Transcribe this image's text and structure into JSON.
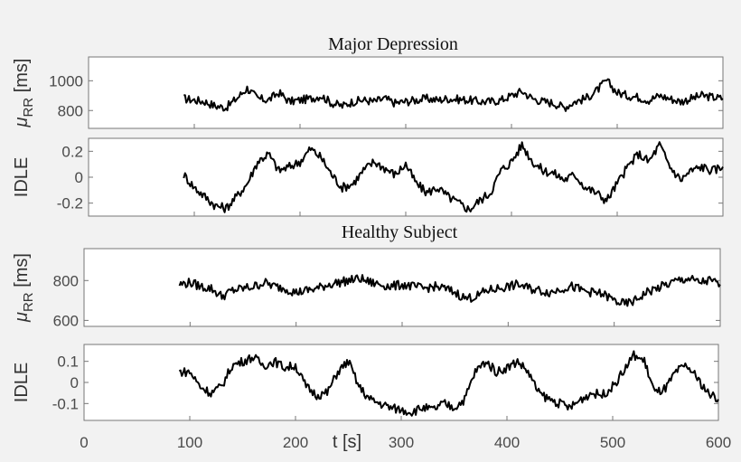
{
  "chart_data": [
    {
      "type": "line",
      "title": "Major Depression",
      "ylabel_main": "μ",
      "ylabel_sub": "RR",
      "ylabel_unit": "[ms]",
      "ylim": [
        680,
        1160
      ],
      "yticks": [
        {
          "v": 800,
          "label": "800"
        },
        {
          "v": 1000,
          "label": "1000"
        }
      ],
      "xlim": [
        0,
        600
      ],
      "series": [
        {
          "values": [
            [
              90,
              880
            ],
            [
              100,
              870
            ],
            [
              110,
              860
            ],
            [
              120,
              830
            ],
            [
              130,
              820
            ],
            [
              140,
              880
            ],
            [
              150,
              950
            ],
            [
              160,
              880
            ],
            [
              170,
              870
            ],
            [
              180,
              920
            ],
            [
              190,
              860
            ],
            [
              200,
              870
            ],
            [
              210,
              880
            ],
            [
              220,
              900
            ],
            [
              230,
              850
            ],
            [
              240,
              830
            ],
            [
              250,
              860
            ],
            [
              260,
              870
            ],
            [
              270,
              860
            ],
            [
              280,
              880
            ],
            [
              290,
              850
            ],
            [
              300,
              860
            ],
            [
              310,
              870
            ],
            [
              320,
              880
            ],
            [
              330,
              870
            ],
            [
              340,
              880
            ],
            [
              350,
              875
            ],
            [
              360,
              870
            ],
            [
              370,
              860
            ],
            [
              380,
              860
            ],
            [
              390,
              870
            ],
            [
              400,
              900
            ],
            [
              410,
              930
            ],
            [
              420,
              880
            ],
            [
              430,
              860
            ],
            [
              440,
              850
            ],
            [
              450,
              820
            ],
            [
              460,
              860
            ],
            [
              470,
              880
            ],
            [
              480,
              930
            ],
            [
              490,
              1000
            ],
            [
              500,
              920
            ],
            [
              510,
              900
            ],
            [
              520,
              890
            ],
            [
              530,
              870
            ],
            [
              540,
              900
            ],
            [
              550,
              880
            ],
            [
              560,
              860
            ],
            [
              570,
              880
            ],
            [
              580,
              900
            ],
            [
              590,
              890
            ],
            [
              600,
              880
            ]
          ]
        }
      ]
    },
    {
      "type": "line",
      "title": "",
      "ylabel": "IDLE",
      "ylim": [
        -0.3,
        0.3
      ],
      "yticks": [
        {
          "v": -0.2,
          "label": "-0.2"
        },
        {
          "v": 0,
          "label": "0"
        },
        {
          "v": 0.2,
          "label": "0.2"
        }
      ],
      "xlim": [
        0,
        600
      ],
      "series": [
        {
          "values": [
            [
              90,
              0.02
            ],
            [
              100,
              -0.08
            ],
            [
              110,
              -0.15
            ],
            [
              120,
              -0.22
            ],
            [
              130,
              -0.24
            ],
            [
              140,
              -0.15
            ],
            [
              150,
              -0.05
            ],
            [
              160,
              0.12
            ],
            [
              170,
              0.18
            ],
            [
              180,
              0.05
            ],
            [
              190,
              0.08
            ],
            [
              200,
              0.12
            ],
            [
              210,
              0.22
            ],
            [
              220,
              0.15
            ],
            [
              230,
              0.02
            ],
            [
              240,
              -0.08
            ],
            [
              250,
              -0.05
            ],
            [
              260,
              0.05
            ],
            [
              270,
              0.12
            ],
            [
              280,
              0.07
            ],
            [
              290,
              0.02
            ],
            [
              300,
              0.1
            ],
            [
              310,
              -0.05
            ],
            [
              320,
              -0.12
            ],
            [
              330,
              -0.08
            ],
            [
              340,
              -0.15
            ],
            [
              350,
              -0.2
            ],
            [
              360,
              -0.25
            ],
            [
              370,
              -0.18
            ],
            [
              380,
              -0.12
            ],
            [
              390,
              0.05
            ],
            [
              400,
              0.12
            ],
            [
              410,
              0.25
            ],
            [
              420,
              0.12
            ],
            [
              430,
              0.05
            ],
            [
              440,
              0.03
            ],
            [
              450,
              -0.02
            ],
            [
              460,
              0.02
            ],
            [
              470,
              -0.08
            ],
            [
              480,
              -0.12
            ],
            [
              490,
              -0.18
            ],
            [
              500,
              -0.05
            ],
            [
              510,
              0.08
            ],
            [
              520,
              0.18
            ],
            [
              530,
              0.12
            ],
            [
              540,
              0.25
            ],
            [
              550,
              0.08
            ],
            [
              560,
              -0.02
            ],
            [
              570,
              0.05
            ],
            [
              580,
              0.08
            ],
            [
              590,
              0.05
            ],
            [
              600,
              0.08
            ]
          ]
        }
      ]
    },
    {
      "type": "line",
      "title": "Healthy Subject",
      "ylabel_main": "μ",
      "ylabel_sub": "RR",
      "ylabel_unit": "[ms]",
      "ylim": [
        570,
        960
      ],
      "yticks": [
        {
          "v": 600,
          "label": "600"
        },
        {
          "v": 800,
          "label": "800"
        }
      ],
      "xlim": [
        0,
        600
      ],
      "series": [
        {
          "values": [
            [
              90,
              780
            ],
            [
              100,
              790
            ],
            [
              110,
              770
            ],
            [
              120,
              760
            ],
            [
              130,
              720
            ],
            [
              140,
              750
            ],
            [
              150,
              760
            ],
            [
              160,
              770
            ],
            [
              170,
              790
            ],
            [
              180,
              770
            ],
            [
              190,
              760
            ],
            [
              200,
              740
            ],
            [
              210,
              750
            ],
            [
              220,
              760
            ],
            [
              230,
              780
            ],
            [
              240,
              790
            ],
            [
              250,
              800
            ],
            [
              260,
              810
            ],
            [
              270,
              790
            ],
            [
              280,
              780
            ],
            [
              290,
              770
            ],
            [
              300,
              780
            ],
            [
              310,
              770
            ],
            [
              320,
              760
            ],
            [
              330,
              770
            ],
            [
              340,
              760
            ],
            [
              350,
              740
            ],
            [
              360,
              710
            ],
            [
              370,
              720
            ],
            [
              380,
              750
            ],
            [
              390,
              760
            ],
            [
              400,
              770
            ],
            [
              410,
              780
            ],
            [
              420,
              760
            ],
            [
              430,
              750
            ],
            [
              440,
              740
            ],
            [
              450,
              760
            ],
            [
              460,
              770
            ],
            [
              470,
              750
            ],
            [
              480,
              740
            ],
            [
              490,
              730
            ],
            [
              500,
              700
            ],
            [
              510,
              680
            ],
            [
              520,
              700
            ],
            [
              530,
              740
            ],
            [
              540,
              760
            ],
            [
              550,
              780
            ],
            [
              560,
              800
            ],
            [
              570,
              810
            ],
            [
              580,
              790
            ],
            [
              590,
              800
            ],
            [
              600,
              780
            ]
          ]
        }
      ]
    },
    {
      "type": "line",
      "title": "",
      "ylabel": "IDLE",
      "ylim": [
        -0.18,
        0.18
      ],
      "yticks": [
        {
          "v": -0.1,
          "label": "-0.1"
        },
        {
          "v": 0,
          "label": "0"
        },
        {
          "v": 0.1,
          "label": "0.1"
        }
      ],
      "xlim": [
        0,
        600
      ],
      "xlabel": "t [s]",
      "xticks": [
        {
          "v": 0,
          "label": "0"
        },
        {
          "v": 100,
          "label": "100"
        },
        {
          "v": 200,
          "label": "200"
        },
        {
          "v": 300,
          "label": "300"
        },
        {
          "v": 400,
          "label": "400"
        },
        {
          "v": 500,
          "label": "500"
        },
        {
          "v": 600,
          "label": "600"
        }
      ],
      "series": [
        {
          "values": [
            [
              90,
              0.05
            ],
            [
              100,
              0.05
            ],
            [
              110,
              -0.02
            ],
            [
              120,
              -0.05
            ],
            [
              130,
              -0.02
            ],
            [
              140,
              0.08
            ],
            [
              150,
              0.1
            ],
            [
              160,
              0.12
            ],
            [
              170,
              0.08
            ],
            [
              180,
              0.1
            ],
            [
              190,
              0.07
            ],
            [
              200,
              0.08
            ],
            [
              210,
              -0.02
            ],
            [
              220,
              -0.06
            ],
            [
              230,
              -0.05
            ],
            [
              240,
              0.05
            ],
            [
              250,
              0.1
            ],
            [
              260,
              -0.02
            ],
            [
              270,
              -0.08
            ],
            [
              280,
              -0.1
            ],
            [
              290,
              -0.12
            ],
            [
              300,
              -0.13
            ],
            [
              310,
              -0.14
            ],
            [
              320,
              -0.12
            ],
            [
              330,
              -0.13
            ],
            [
              340,
              -0.1
            ],
            [
              350,
              -0.12
            ],
            [
              360,
              -0.08
            ],
            [
              370,
              0.05
            ],
            [
              380,
              0.1
            ],
            [
              390,
              0.05
            ],
            [
              400,
              0.07
            ],
            [
              410,
              0.1
            ],
            [
              420,
              0.05
            ],
            [
              430,
              -0.05
            ],
            [
              440,
              -0.08
            ],
            [
              450,
              -0.1
            ],
            [
              460,
              -0.12
            ],
            [
              470,
              -0.08
            ],
            [
              480,
              -0.05
            ],
            [
              490,
              -0.06
            ],
            [
              500,
              -0.02
            ],
            [
              510,
              0.05
            ],
            [
              520,
              0.13
            ],
            [
              530,
              0.1
            ],
            [
              540,
              -0.05
            ],
            [
              550,
              -0.03
            ],
            [
              560,
              0.05
            ],
            [
              570,
              0.08
            ],
            [
              580,
              0.02
            ],
            [
              590,
              -0.05
            ],
            [
              600,
              -0.08
            ]
          ]
        }
      ]
    }
  ]
}
